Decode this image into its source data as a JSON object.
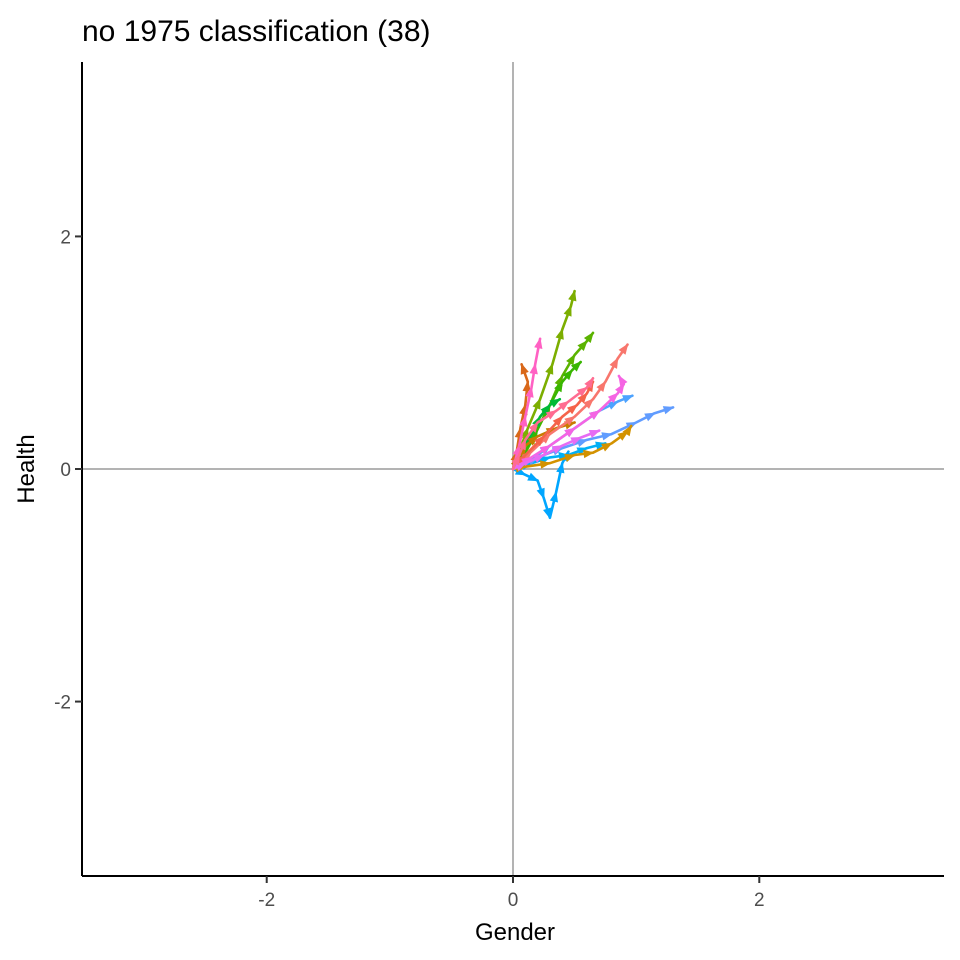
{
  "chart_data": {
    "type": "line",
    "title": "no 1975 classification (38)",
    "xlabel": "Gender",
    "ylabel": "Health",
    "xlim": [
      -3.5,
      3.5
    ],
    "ylim": [
      -3.5,
      3.5
    ],
    "x_ticks": [
      -2,
      0,
      2
    ],
    "y_ticks": [
      -2,
      0,
      2
    ],
    "x_tick_labels": [
      "-2",
      "0",
      "2"
    ],
    "y_tick_labels": [
      "-2",
      "0",
      "2"
    ],
    "reference_lines": {
      "x": 0,
      "y": 0
    },
    "grid": false,
    "legend": "none",
    "arrows": true,
    "series": [
      {
        "color": "#7cae00",
        "points": [
          [
            0,
            0
          ],
          [
            0.05,
            0.15
          ],
          [
            0.12,
            0.35
          ],
          [
            0.22,
            0.6
          ],
          [
            0.32,
            0.9
          ],
          [
            0.4,
            1.2
          ],
          [
            0.47,
            1.4
          ],
          [
            0.5,
            1.53
          ]
        ]
      },
      {
        "color": "#5bb300",
        "points": [
          [
            0,
            0
          ],
          [
            0.08,
            0.1
          ],
          [
            0.18,
            0.3
          ],
          [
            0.3,
            0.55
          ],
          [
            0.4,
            0.8
          ],
          [
            0.5,
            0.98
          ],
          [
            0.6,
            1.1
          ],
          [
            0.65,
            1.17
          ]
        ]
      },
      {
        "color": "#39b600",
        "points": [
          [
            0,
            0
          ],
          [
            0.1,
            0.15
          ],
          [
            0.2,
            0.35
          ],
          [
            0.3,
            0.55
          ],
          [
            0.4,
            0.75
          ],
          [
            0.48,
            0.85
          ],
          [
            0.55,
            0.92
          ]
        ]
      },
      {
        "color": "#00ba38",
        "points": [
          [
            0,
            0
          ],
          [
            0.05,
            0.1
          ],
          [
            0.15,
            0.3
          ],
          [
            0.22,
            0.45
          ],
          [
            0.3,
            0.55
          ],
          [
            0.38,
            0.6
          ]
        ]
      },
      {
        "color": "#00a6ff",
        "points": [
          [
            0,
            0
          ],
          [
            0.1,
            -0.05
          ],
          [
            0.2,
            -0.1
          ],
          [
            0.25,
            -0.25
          ],
          [
            0.3,
            -0.42
          ],
          [
            0.35,
            -0.2
          ],
          [
            0.4,
            0.05
          ],
          [
            0.45,
            0.15
          ]
        ]
      },
      {
        "color": "#00b0f6",
        "points": [
          [
            0,
            0
          ],
          [
            0.15,
            0.05
          ],
          [
            0.3,
            0.1
          ],
          [
            0.45,
            0.12
          ],
          [
            0.6,
            0.18
          ],
          [
            0.75,
            0.22
          ]
        ]
      },
      {
        "color": "#619cff",
        "points": [
          [
            0,
            0
          ],
          [
            0.2,
            0.1
          ],
          [
            0.4,
            0.18
          ],
          [
            0.6,
            0.25
          ],
          [
            0.8,
            0.3
          ],
          [
            1.0,
            0.4
          ],
          [
            1.15,
            0.48
          ],
          [
            1.3,
            0.53
          ]
        ]
      },
      {
        "color": "#4da3ff",
        "points": [
          [
            0,
            0
          ],
          [
            0.15,
            0.08
          ],
          [
            0.3,
            0.2
          ],
          [
            0.5,
            0.35
          ],
          [
            0.7,
            0.5
          ],
          [
            0.85,
            0.58
          ],
          [
            0.97,
            0.63
          ]
        ]
      },
      {
        "color": "#d39200",
        "points": [
          [
            0,
            0
          ],
          [
            0.1,
            0.02
          ],
          [
            0.3,
            0.05
          ],
          [
            0.5,
            0.12
          ],
          [
            0.65,
            0.14
          ],
          [
            0.8,
            0.22
          ],
          [
            0.93,
            0.32
          ],
          [
            0.96,
            0.37
          ]
        ]
      },
      {
        "color": "#d9681a",
        "points": [
          [
            0,
            0
          ],
          [
            0.03,
            0.15
          ],
          [
            0.06,
            0.35
          ],
          [
            0.1,
            0.55
          ],
          [
            0.12,
            0.75
          ],
          [
            0.07,
            0.9
          ]
        ]
      },
      {
        "color": "#c77c00",
        "points": [
          [
            0,
            0
          ],
          [
            0.05,
            0.1
          ],
          [
            0.1,
            0.2
          ],
          [
            0.2,
            0.28
          ],
          [
            0.35,
            0.35
          ],
          [
            0.5,
            0.4
          ]
        ]
      },
      {
        "color": "#f8766d",
        "points": [
          [
            0,
            0
          ],
          [
            0.15,
            0.15
          ],
          [
            0.3,
            0.3
          ],
          [
            0.5,
            0.45
          ],
          [
            0.65,
            0.6
          ],
          [
            0.75,
            0.75
          ],
          [
            0.85,
            0.95
          ],
          [
            0.93,
            1.07
          ]
        ]
      },
      {
        "color": "#f5634a",
        "points": [
          [
            0,
            0
          ],
          [
            0.1,
            0.12
          ],
          [
            0.25,
            0.28
          ],
          [
            0.4,
            0.45
          ],
          [
            0.52,
            0.55
          ],
          [
            0.6,
            0.65
          ],
          [
            0.65,
            0.75
          ]
        ]
      },
      {
        "color": "#ff61c3",
        "points": [
          [
            0,
            0
          ],
          [
            0.05,
            0.2
          ],
          [
            0.1,
            0.45
          ],
          [
            0.15,
            0.7
          ],
          [
            0.18,
            0.9
          ],
          [
            0.22,
            1.12
          ]
        ]
      },
      {
        "color": "#f564e3",
        "points": [
          [
            0,
            0
          ],
          [
            0.15,
            0.1
          ],
          [
            0.3,
            0.2
          ],
          [
            0.5,
            0.35
          ],
          [
            0.7,
            0.5
          ],
          [
            0.85,
            0.65
          ],
          [
            0.9,
            0.73
          ],
          [
            0.86,
            0.8
          ]
        ]
      },
      {
        "color": "#e76bf3",
        "points": [
          [
            0,
            0
          ],
          [
            0.1,
            0.05
          ],
          [
            0.25,
            0.12
          ],
          [
            0.4,
            0.2
          ],
          [
            0.55,
            0.27
          ],
          [
            0.7,
            0.33
          ]
        ]
      },
      {
        "color": "#ff6c91",
        "points": [
          [
            0,
            0
          ],
          [
            0.05,
            0.12
          ],
          [
            0.1,
            0.25
          ],
          [
            0.2,
            0.4
          ],
          [
            0.35,
            0.5
          ],
          [
            0.45,
            0.58
          ],
          [
            0.6,
            0.7
          ],
          [
            0.65,
            0.78
          ]
        ]
      }
    ]
  }
}
